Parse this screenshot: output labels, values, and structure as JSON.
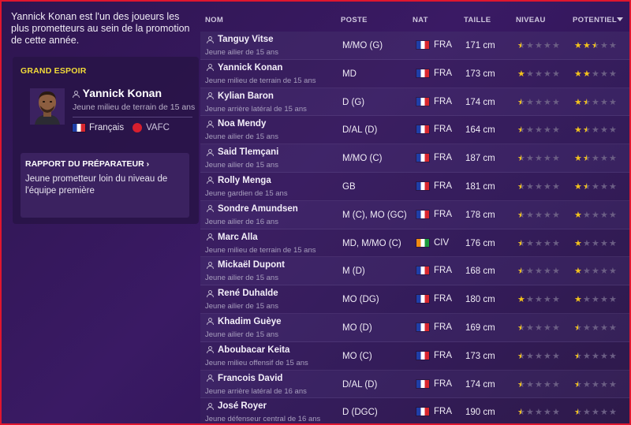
{
  "intro_text": "Yannick Konan est l'un des joueurs les plus prometteurs au sein de la promotion de cette année.",
  "card": {
    "title": "GRAND ESPOIR",
    "player_name": "Yannick Konan",
    "player_role": "Jeune milieu de terrain de 15 ans",
    "nationality": "Français",
    "club": "VAFC",
    "report_title": "RAPPORT DU PRÉPARATEUR ›",
    "report_text": "Jeune prometteur loin du niveau de l'équipe première"
  },
  "table": {
    "headers": {
      "name": "NOM",
      "pos": "POSTE",
      "nat": "NAT",
      "height": "TAILLE",
      "current": "NIVEAU",
      "potential": "POTENTIEL"
    },
    "rows": [
      {
        "name": "Tanguy Vitse",
        "role": "Jeune ailier de 15 ans",
        "pos": "M/MO (G)",
        "nat": "FRA",
        "flag": "fra",
        "height": "171 cm",
        "current": 0.5,
        "potential": 2.5
      },
      {
        "name": "Yannick Konan",
        "role": "Jeune milieu de terrain de 15 ans",
        "pos": "MD",
        "nat": "FRA",
        "flag": "fra",
        "height": "173 cm",
        "current": 1,
        "potential": 2
      },
      {
        "name": "Kylian Baron",
        "role": "Jeune arrière latéral de 15 ans",
        "pos": "D (G)",
        "nat": "FRA",
        "flag": "fra",
        "height": "174 cm",
        "current": 0.5,
        "potential": 1.5
      },
      {
        "name": "Noa Mendy",
        "role": "Jeune ailier de 15 ans",
        "pos": "D/AL (D)",
        "nat": "FRA",
        "flag": "fra",
        "height": "164 cm",
        "current": 0.5,
        "potential": 1.5
      },
      {
        "name": "Said Tlemçani",
        "role": "Jeune ailier de 15 ans",
        "pos": "M/MO (C)",
        "nat": "FRA",
        "flag": "fra",
        "height": "187 cm",
        "current": 0.5,
        "potential": 1.5
      },
      {
        "name": "Rolly Menga",
        "role": "Jeune gardien de 15 ans",
        "pos": "GB",
        "nat": "FRA",
        "flag": "fra",
        "height": "181 cm",
        "current": 0.5,
        "potential": 1.5
      },
      {
        "name": "Sondre Amundsen",
        "role": "Jeune ailier de 16 ans",
        "pos": "M (C), MO (GC)",
        "nat": "FRA",
        "flag": "fra",
        "height": "178 cm",
        "current": 0.5,
        "potential": 1
      },
      {
        "name": "Marc Alla",
        "role": "Jeune milieu de terrain de 15 ans",
        "pos": "MD, M/MO (C)",
        "nat": "CIV",
        "flag": "civ",
        "height": "176 cm",
        "current": 0.5,
        "potential": 1
      },
      {
        "name": "Mickaël Dupont",
        "role": "Jeune ailier de 15 ans",
        "pos": "M (D)",
        "nat": "FRA",
        "flag": "fra",
        "height": "168 cm",
        "current": 0.5,
        "potential": 1
      },
      {
        "name": "René Duhalde",
        "role": "Jeune ailier de 15 ans",
        "pos": "MO (DG)",
        "nat": "FRA",
        "flag": "fra",
        "height": "180 cm",
        "current": 1,
        "potential": 1
      },
      {
        "name": "Khadim Guèye",
        "role": "Jeune ailier de 15 ans",
        "pos": "MO (D)",
        "nat": "FRA",
        "flag": "fra",
        "height": "169 cm",
        "current": 0.5,
        "potential": 0.5
      },
      {
        "name": "Aboubacar Keita",
        "role": "Jeune milieu offensif de 15 ans",
        "pos": "MO (C)",
        "nat": "FRA",
        "flag": "fra",
        "height": "173 cm",
        "current": 0.5,
        "potential": 0.5
      },
      {
        "name": "Francois David",
        "role": "Jeune arrière latéral de 16 ans",
        "pos": "D/AL (D)",
        "nat": "FRA",
        "flag": "fra",
        "height": "174 cm",
        "current": 0.5,
        "potential": 0.5
      },
      {
        "name": "José Royer",
        "role": "Jeune défenseur central de 16 ans",
        "pos": "D (DGC)",
        "nat": "FRA",
        "flag": "fra",
        "height": "190 cm",
        "current": 0.5,
        "potential": 0.5
      }
    ]
  },
  "colors": {
    "accent_yellow": "#f2dc39",
    "star": "#f2c21d",
    "border": "#e0162e"
  }
}
